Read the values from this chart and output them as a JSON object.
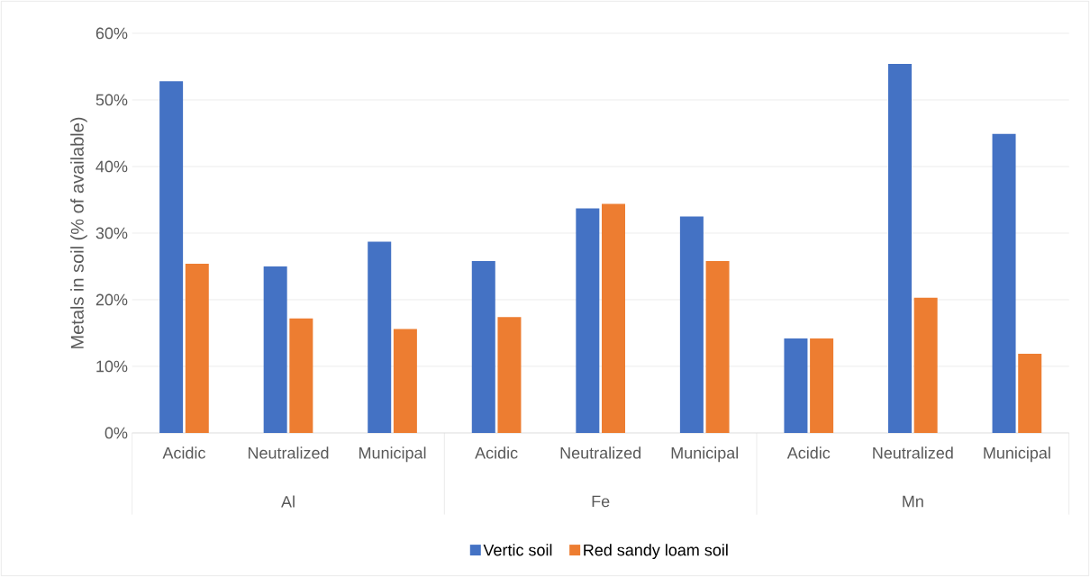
{
  "chart_data": {
    "type": "bar",
    "ylabel": "Metals in soil (% of available)",
    "categories": [
      "Acidic",
      "Neutralized",
      "Municipal",
      "Acidic",
      "Neutralized",
      "Municipal",
      "Acidic",
      "Neutralized",
      "Municipal"
    ],
    "annotations": [
      "Al",
      "Fe",
      "Mn"
    ],
    "series": [
      {
        "name": "Vertic soil",
        "color": "#4472c4",
        "values": [
          52.8,
          25.0,
          28.7,
          25.8,
          33.7,
          32.5,
          14.2,
          55.4,
          44.9
        ]
      },
      {
        "name": "Red sandy loam soil",
        "color": "#ed7d31",
        "values": [
          25.4,
          17.2,
          15.6,
          17.4,
          34.4,
          25.8,
          14.2,
          20.3,
          11.9
        ]
      }
    ],
    "ylim": [
      0,
      60
    ],
    "yticks": [
      {
        "value": 0,
        "label": "0%"
      },
      {
        "value": 10,
        "label": "10%"
      },
      {
        "value": 20,
        "label": "20%"
      },
      {
        "value": 30,
        "label": "30%"
      },
      {
        "value": 40,
        "label": "40%"
      },
      {
        "value": 50,
        "label": "50%"
      },
      {
        "value": 60,
        "label": "60%"
      }
    ],
    "grid": "y",
    "legend": "bottom"
  }
}
